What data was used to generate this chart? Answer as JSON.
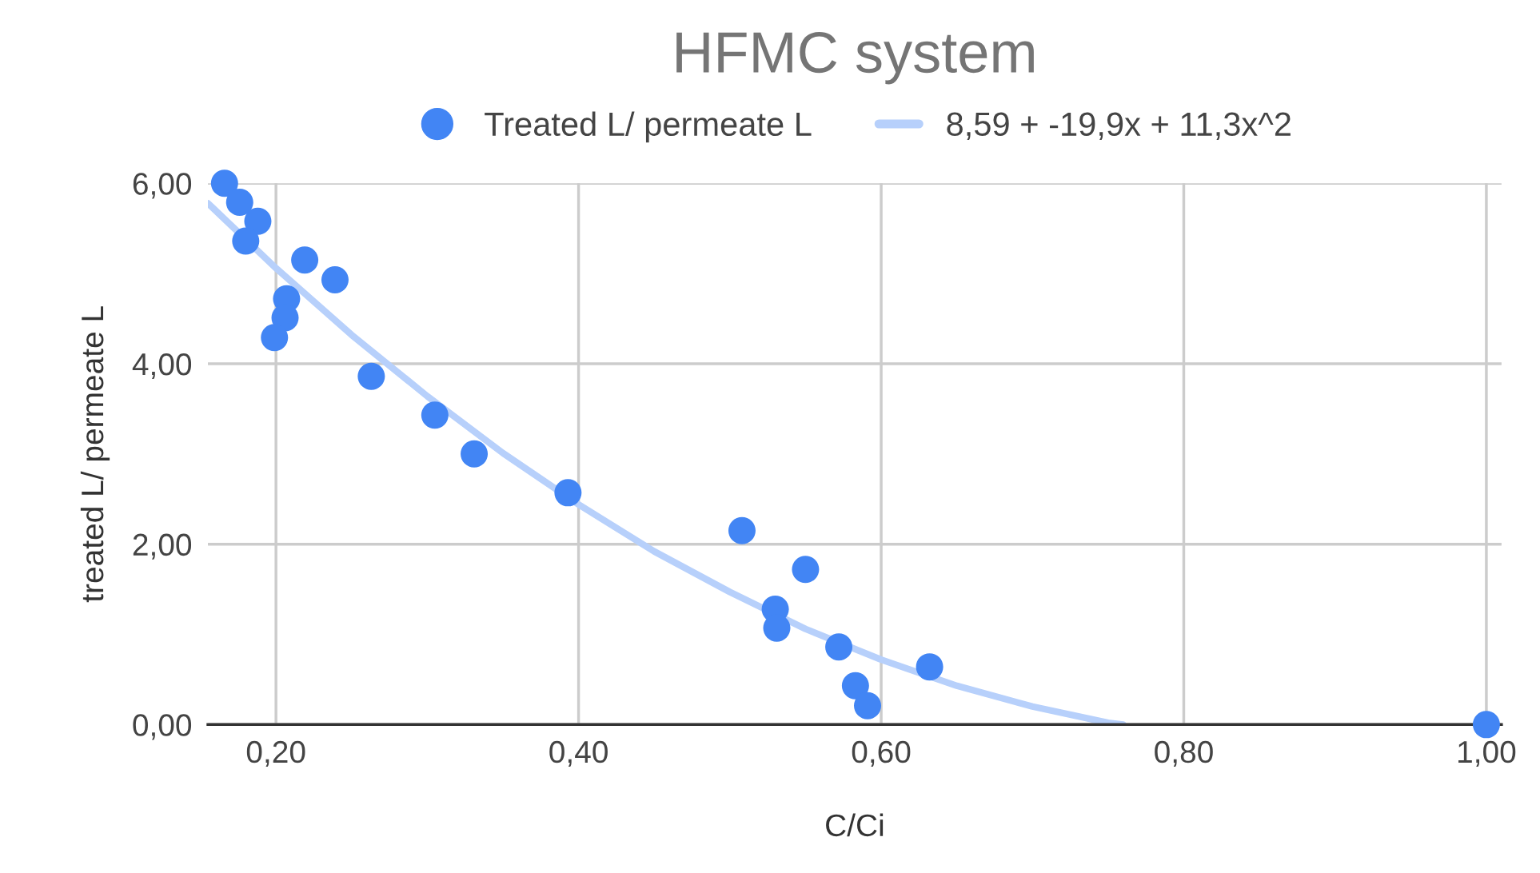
{
  "chart_data": {
    "type": "scatter",
    "title": "HFMC system",
    "xlabel": "C/Ci",
    "ylabel": "treated L/ permeate L",
    "xlim": [
      0.155,
      1.01
    ],
    "ylim": [
      0,
      6
    ],
    "xticks": [
      {
        "value": 0.2,
        "label": "0,20"
      },
      {
        "value": 0.4,
        "label": "0,40"
      },
      {
        "value": 0.6,
        "label": "0,60"
      },
      {
        "value": 0.8,
        "label": "0,80"
      },
      {
        "value": 1.0,
        "label": "1,00"
      }
    ],
    "yticks": [
      {
        "value": 0,
        "label": "0,00"
      },
      {
        "value": 2,
        "label": "2,00"
      },
      {
        "value": 4,
        "label": "4,00"
      },
      {
        "value": 6,
        "label": "6,00"
      }
    ],
    "grid": true,
    "legend": "top",
    "series": [
      {
        "name": "Treated L/ permeate L",
        "marker": "circle",
        "color": "#4285f4",
        "x": [
          0.166,
          0.176,
          0.188,
          0.18,
          0.219,
          0.239,
          0.207,
          0.206,
          0.199,
          0.263,
          0.305,
          0.331,
          0.393,
          0.508,
          0.55,
          0.53,
          0.531,
          0.572,
          0.583,
          0.591,
          0.632,
          1.0
        ],
        "values": [
          6.0,
          5.79,
          5.58,
          5.36,
          5.15,
          4.93,
          4.72,
          4.51,
          4.29,
          3.86,
          3.43,
          3.0,
          2.57,
          2.15,
          1.72,
          1.28,
          1.07,
          0.86,
          0.43,
          0.21,
          0.64,
          0.0
        ]
      },
      {
        "name": "8,59 + -19,9x + 11,3x^2",
        "type": "line",
        "color": "#b7d0fb",
        "x": [
          0.155,
          0.2,
          0.25,
          0.3,
          0.35,
          0.4,
          0.45,
          0.5,
          0.55,
          0.6,
          0.65,
          0.7,
          0.75,
          0.76
        ],
        "values": [
          5.78,
          5.06,
          4.32,
          3.64,
          3.01,
          2.44,
          1.92,
          1.47,
          1.06,
          0.72,
          0.43,
          0.2,
          0.02,
          0.0
        ]
      }
    ]
  }
}
